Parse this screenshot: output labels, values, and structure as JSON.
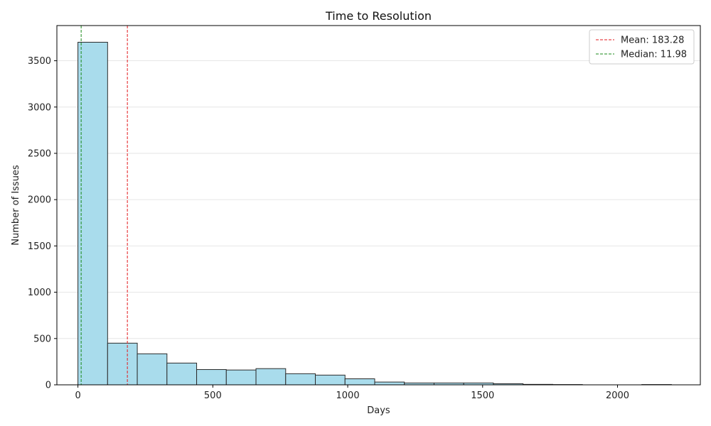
{
  "chart_data": {
    "type": "bar",
    "title": "Time to Resolution",
    "xlabel": "Days",
    "ylabel": "Number of Issues",
    "xlim": [
      -78,
      2307
    ],
    "ylim": [
      0,
      3880
    ],
    "xticks": [
      0,
      500,
      1000,
      1500,
      2000
    ],
    "yticks": [
      0,
      500,
      1000,
      1500,
      2000,
      2500,
      3000,
      3500
    ],
    "bins": [
      {
        "x0": 0,
        "x1": 110,
        "value": 3700
      },
      {
        "x0": 110,
        "x1": 220,
        "value": 450
      },
      {
        "x0": 220,
        "x1": 330,
        "value": 335
      },
      {
        "x0": 330,
        "x1": 440,
        "value": 235
      },
      {
        "x0": 440,
        "x1": 550,
        "value": 165
      },
      {
        "x0": 550,
        "x1": 660,
        "value": 160
      },
      {
        "x0": 660,
        "x1": 770,
        "value": 175
      },
      {
        "x0": 770,
        "x1": 880,
        "value": 120
      },
      {
        "x0": 880,
        "x1": 990,
        "value": 105
      },
      {
        "x0": 990,
        "x1": 1100,
        "value": 65
      },
      {
        "x0": 1100,
        "x1": 1210,
        "value": 30
      },
      {
        "x0": 1210,
        "x1": 1320,
        "value": 20
      },
      {
        "x0": 1320,
        "x1": 1430,
        "value": 20
      },
      {
        "x0": 1430,
        "x1": 1540,
        "value": 20
      },
      {
        "x0": 1540,
        "x1": 1650,
        "value": 12
      },
      {
        "x0": 1650,
        "x1": 1760,
        "value": 5
      },
      {
        "x0": 1760,
        "x1": 1870,
        "value": 3
      },
      {
        "x0": 1870,
        "x1": 1980,
        "value": 0
      },
      {
        "x0": 1980,
        "x1": 2090,
        "value": 0
      },
      {
        "x0": 2090,
        "x1": 2200,
        "value": 3
      }
    ],
    "reference_lines": [
      {
        "label": "Mean: 183.28",
        "x": 183.28,
        "color": "#e31a1c",
        "style": "dashed"
      },
      {
        "label": "Median: 11.98",
        "x": 11.98,
        "color": "#1a8a1a",
        "style": "dashed"
      }
    ],
    "bar_color": "#a9dcec",
    "bar_edge_color": "#2b2b2b",
    "grid": {
      "y": true,
      "x": false
    },
    "legend_position": "top-right"
  }
}
